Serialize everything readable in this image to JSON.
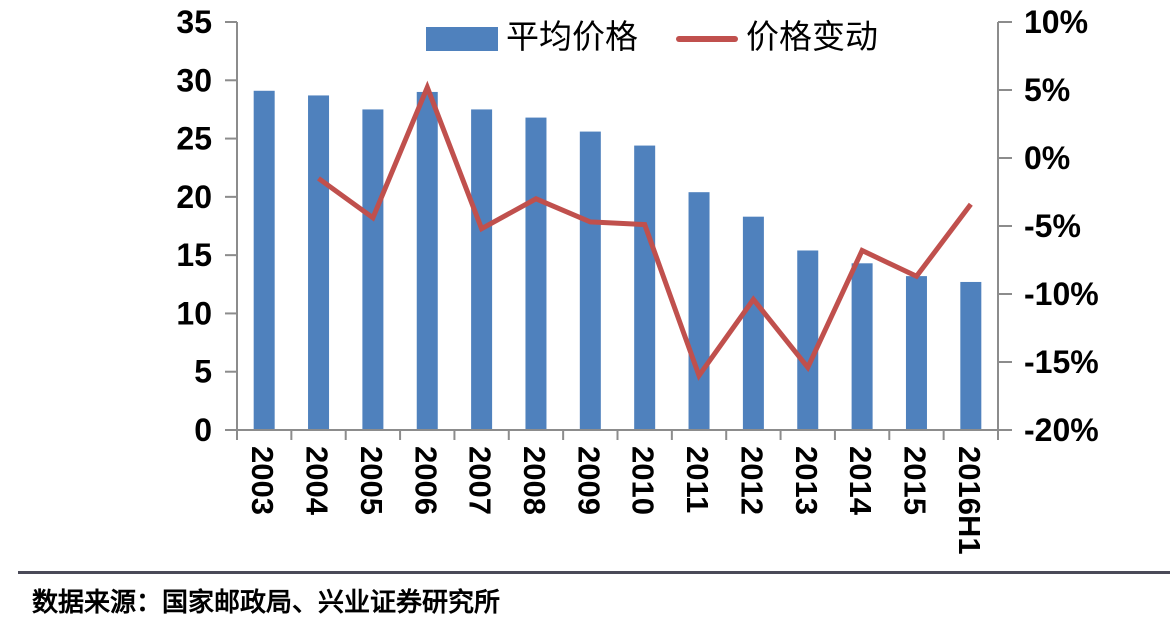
{
  "chart_data": {
    "type": "bar+line",
    "categories": [
      "2003",
      "2004",
      "2005",
      "2006",
      "2007",
      "2008",
      "2009",
      "2010",
      "2011",
      "2012",
      "2013",
      "2014",
      "2015",
      "2016H1"
    ],
    "series": [
      {
        "name": "平均价格",
        "render": "bar",
        "axis": "left",
        "values": [
          29.1,
          28.7,
          27.5,
          29.0,
          27.5,
          26.8,
          25.6,
          24.4,
          20.4,
          18.3,
          15.4,
          14.3,
          13.2,
          12.7
        ]
      },
      {
        "name": "价格变动",
        "render": "line",
        "axis": "right",
        "values": [
          null,
          -1.5,
          -4.4,
          5.2,
          -5.2,
          -3.0,
          -4.7,
          -4.9,
          -16.0,
          -10.4,
          -15.4,
          -6.8,
          -8.7,
          -3.4
        ]
      }
    ],
    "left_axis": {
      "min": 0,
      "max": 35,
      "step": 5,
      "tick_labels": [
        "0",
        "5",
        "10",
        "15",
        "20",
        "25",
        "30",
        "35"
      ]
    },
    "right_axis": {
      "min": -20,
      "max": 10,
      "step": 5,
      "tick_labels": [
        "10%",
        "5%",
        "0%",
        "-5%",
        "-10%",
        "-15%",
        "-20%"
      ]
    },
    "title": "",
    "xlabel": "",
    "ylabel": "",
    "legend_position": "top-center",
    "grid": false
  },
  "legend": {
    "bar_label": "平均价格",
    "line_label": "价格变动"
  },
  "footer": {
    "source_text": "数据来源：国家邮政局、兴业证券研究所"
  },
  "colors": {
    "bar": "#4F81BD",
    "line": "#C0504D",
    "axis": "#8C8C8C",
    "divider": "#4A4A58",
    "text": "#000000"
  }
}
